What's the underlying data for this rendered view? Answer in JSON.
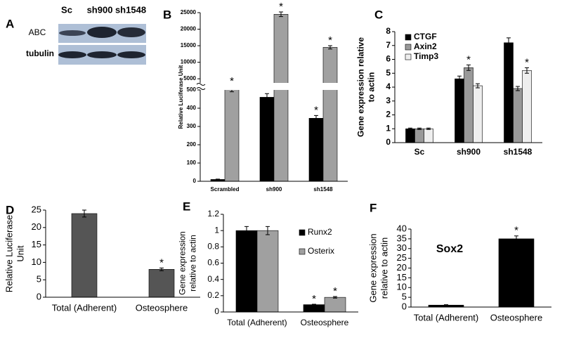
{
  "blot": {
    "label": "A",
    "lanes": [
      "Sc",
      "sh900",
      "sh1548"
    ],
    "rows": [
      "ABC",
      "tubulin"
    ]
  },
  "chart_data": [
    {
      "type": "bar",
      "label": "B",
      "ylabel": [
        "Relative Luciferase Unit"
      ],
      "categories": [
        "Scrambled",
        "sh900",
        "sh1548"
      ],
      "series": [
        {
          "color": "#000000",
          "values": [
            10,
            460,
            345
          ],
          "errors": [
            2,
            20,
            15
          ],
          "annotations": [
            null,
            "*",
            "*"
          ]
        },
        {
          "color": "#a0a0a0",
          "values": [
            510,
            24500,
            14500
          ],
          "errors": [
            20,
            700,
            500
          ],
          "annotations": [
            "*",
            "*",
            "*"
          ]
        }
      ],
      "ylim": [
        0,
        500
      ],
      "ylim_upper": [
        3750,
        25000
      ],
      "yticks": [
        0,
        100,
        200,
        300,
        400,
        500,
        5000,
        10000,
        15000,
        20000,
        25000
      ],
      "axis_break": true
    },
    {
      "type": "bar",
      "label": "C",
      "ylabel": [
        "Gene expression relative",
        "to actin"
      ],
      "categories": [
        "Sc",
        "sh900",
        "sh1548"
      ],
      "series": [
        {
          "name": "CTGF",
          "color": "#000000",
          "values": [
            1,
            4.6,
            7.2
          ],
          "errors": [
            0.05,
            0.2,
            0.35
          ],
          "annotations": [
            null,
            null,
            null
          ]
        },
        {
          "name": "Axin2",
          "color": "#999999",
          "values": [
            1,
            5.4,
            3.9
          ],
          "errors": [
            0.05,
            0.2,
            0.15
          ],
          "annotations": [
            null,
            "*",
            null
          ]
        },
        {
          "name": "Timp3",
          "color": "#eeeeee",
          "values": [
            1,
            4.1,
            5.2
          ],
          "errors": [
            0.05,
            0.15,
            0.2
          ],
          "annotations": [
            null,
            null,
            "*"
          ]
        }
      ],
      "ylim": [
        0,
        8
      ],
      "yticks": [
        0,
        1,
        2,
        3,
        4,
        5,
        6,
        7,
        8
      ],
      "legend": "upper left"
    },
    {
      "type": "bar",
      "label": "D",
      "ylabel": [
        "Relative Luciferase",
        "Unit"
      ],
      "categories": [
        "Total (Adherent)",
        "Osteosphere"
      ],
      "series": [
        {
          "color": "#555555",
          "values": [
            24,
            8
          ],
          "errors": [
            1,
            0.4
          ],
          "annotations": [
            null,
            "*"
          ]
        }
      ],
      "ylim": [
        0,
        25
      ],
      "yticks": [
        0,
        5,
        10,
        15,
        20,
        25
      ]
    },
    {
      "type": "bar",
      "label": "E",
      "ylabel": [
        "Gene expression",
        "relative to actin"
      ],
      "categories": [
        "Total (Adherent)",
        "Osteosphere"
      ],
      "series": [
        {
          "name": "Runx2",
          "color": "#000000",
          "values": [
            1,
            0.09
          ],
          "errors": [
            0.05,
            0.005
          ],
          "annotations": [
            null,
            "*"
          ]
        },
        {
          "name": "Osterix",
          "color": "#a0a0a0",
          "values": [
            1,
            0.18
          ],
          "errors": [
            0.05,
            0.01
          ],
          "annotations": [
            null,
            "*"
          ]
        }
      ],
      "ylim": [
        0,
        1.2
      ],
      "yticks": [
        0,
        0.2,
        0.4,
        0.6,
        0.8,
        1,
        1.2
      ],
      "legend": "right"
    },
    {
      "type": "bar",
      "label": "F",
      "title": "Sox2",
      "ylabel": [
        "Gene expression",
        "relative to actin"
      ],
      "categories": [
        "Total (Adherent)",
        "Osteosphere"
      ],
      "series": [
        {
          "color": "#000000",
          "values": [
            1,
            35
          ],
          "errors": [
            0.2,
            1.5
          ],
          "annotations": [
            null,
            "*"
          ]
        }
      ],
      "ylim": [
        0,
        40
      ],
      "yticks": [
        0,
        5,
        10,
        15,
        20,
        25,
        30,
        35,
        40
      ]
    }
  ]
}
